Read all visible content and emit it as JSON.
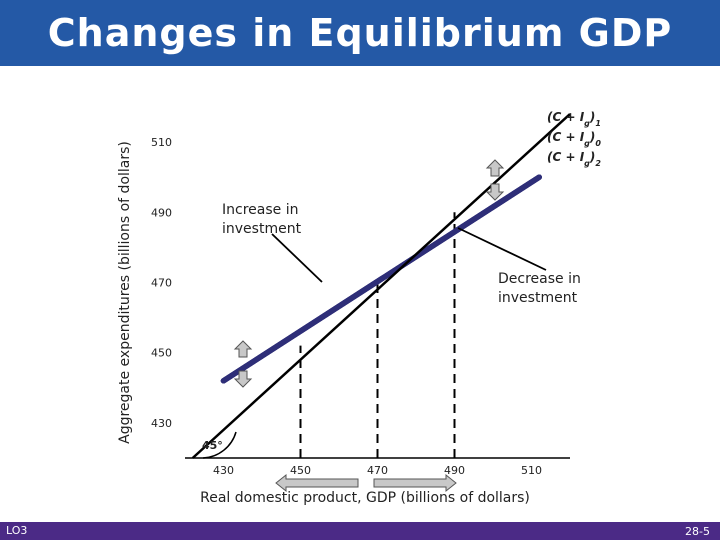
{
  "slide": {
    "title": "Changes in Equilibrium GDP",
    "footer_left": "LO3",
    "footer_right": "28-5"
  },
  "colors": {
    "header": "#2459a6",
    "footer": "#4b2a86",
    "ae_line": "#2e2e78",
    "guide_line": "#000000",
    "arrow_fill": "#c8c8c8"
  },
  "chart_data": {
    "type": "line",
    "xlabel": "Real domestic product, GDP (billions of dollars)",
    "ylabel": "Aggregate expenditures (billions of dollars)",
    "xlim": [
      420,
      520
    ],
    "ylim": [
      420,
      520
    ],
    "x_ticks": [
      430,
      450,
      470,
      490,
      510
    ],
    "y_ticks": [
      430,
      450,
      470,
      490,
      510
    ],
    "grid": false,
    "series": [
      {
        "name": "45°",
        "role": "guide",
        "points": [
          [
            422,
            420
          ],
          [
            520,
            518
          ]
        ]
      },
      {
        "name": "(C + Ig)1",
        "role": "ae",
        "points": [
          [
            430,
            442
          ],
          [
            512,
            500
          ]
        ]
      },
      {
        "name": "(C + Ig)0",
        "role": "ae",
        "points": [
          [
            430,
            442
          ],
          [
            512,
            500
          ]
        ]
      },
      {
        "name": "(C + Ig)2",
        "role": "ae",
        "points": [
          [
            430,
            442
          ],
          [
            512,
            500
          ]
        ]
      }
    ],
    "equilibrium_lines_x": [
      450,
      470,
      490
    ],
    "annotations": [
      {
        "text_lines": [
          "Increase in",
          "investment"
        ],
        "points_to": [
          468,
          466
        ]
      },
      {
        "text_lines": [
          "Decrease in",
          "investment"
        ],
        "points_to": [
          485,
          488
        ]
      }
    ],
    "angle_label": "45°"
  }
}
